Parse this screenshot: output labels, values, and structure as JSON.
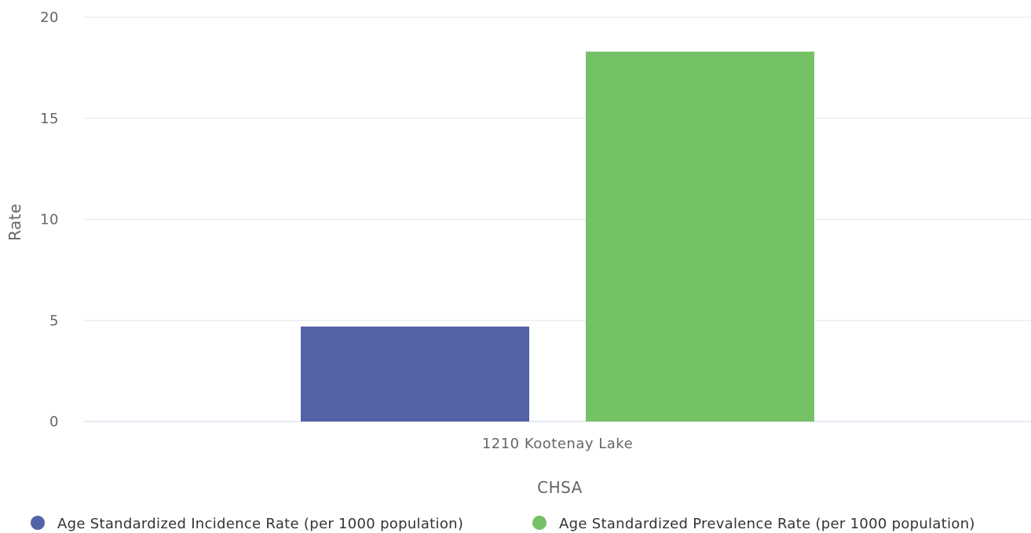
{
  "chart_data": {
    "type": "bar",
    "categories": [
      "1210 Kootenay Lake"
    ],
    "series": [
      {
        "name": "Age Standardized Incidence Rate (per 1000 population)",
        "values": [
          4.7
        ],
        "color": "#5463a8"
      },
      {
        "name": "Age Standardized Prevalence Rate (per 1000 population)",
        "values": [
          18.3
        ],
        "color": "#74c166"
      }
    ],
    "title": "",
    "xlabel": "CHSA",
    "ylabel": "Rate",
    "ylim": [
      0,
      20
    ],
    "yticks": [
      "0",
      "5",
      "10",
      "15",
      "20"
    ],
    "grid": true,
    "legend_position": "bottom"
  }
}
